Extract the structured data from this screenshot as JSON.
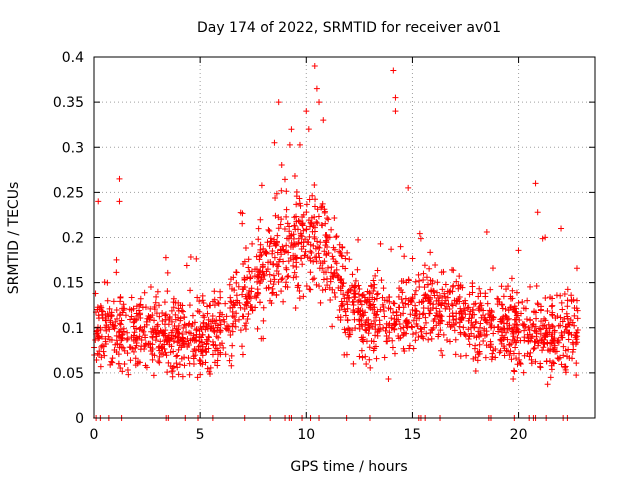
{
  "chart_data": {
    "type": "scatter",
    "title": "Day 174 of 2022, SRMTID for receiver av01",
    "xlabel": "GPS time / hours",
    "ylabel": "SRMTID / TECUs",
    "xlim": [
      0,
      23.6
    ],
    "ylim": [
      0,
      0.4
    ],
    "xticks": [
      0,
      5,
      10,
      15,
      20
    ],
    "xtick_labels": [
      "0",
      "5",
      "10",
      "15",
      "20"
    ],
    "yticks": [
      0,
      0.05,
      0.1,
      0.15,
      0.2,
      0.25,
      0.3,
      0.35,
      0.4
    ],
    "ytick_labels": [
      "0",
      "0.05",
      "0.1",
      "0.15",
      "0.2",
      "0.25",
      "0.3",
      "0.35",
      "0.4"
    ],
    "grid": true,
    "marker": "plus",
    "color": "#ff0000",
    "series": [
      {
        "name": "SRMTID",
        "envelope_hours": [
          0,
          1,
          2,
          3,
          4,
          5,
          6,
          7,
          8,
          9,
          10,
          11,
          12,
          13,
          14,
          15,
          16,
          17,
          18,
          19,
          20,
          21,
          22,
          22.8
        ],
        "envelope_median": [
          0.1,
          0.095,
          0.09,
          0.09,
          0.095,
          0.09,
          0.1,
          0.13,
          0.16,
          0.19,
          0.2,
          0.18,
          0.12,
          0.11,
          0.11,
          0.12,
          0.12,
          0.12,
          0.11,
          0.1,
          0.1,
          0.09,
          0.09,
          0.1
        ],
        "notable_points": [
          {
            "x": 0.2,
            "y": 0.24
          },
          {
            "x": 1.2,
            "y": 0.265
          },
          {
            "x": 1.2,
            "y": 0.24
          },
          {
            "x": 8.5,
            "y": 0.305
          },
          {
            "x": 8.7,
            "y": 0.35
          },
          {
            "x": 9.3,
            "y": 0.32
          },
          {
            "x": 10.0,
            "y": 0.34
          },
          {
            "x": 10.4,
            "y": 0.39
          },
          {
            "x": 10.5,
            "y": 0.365
          },
          {
            "x": 10.6,
            "y": 0.35
          },
          {
            "x": 10.8,
            "y": 0.33
          },
          {
            "x": 14.1,
            "y": 0.385
          },
          {
            "x": 14.2,
            "y": 0.355
          },
          {
            "x": 14.2,
            "y": 0.34
          },
          {
            "x": 14.8,
            "y": 0.255
          },
          {
            "x": 20.8,
            "y": 0.26
          },
          {
            "x": 20.9,
            "y": 0.228
          },
          {
            "x": 22.0,
            "y": 0.21
          }
        ],
        "zero_points_hours": [
          0.1,
          0.3,
          0.7,
          1.3,
          3.4,
          3.5,
          4.3,
          4.9,
          5.6,
          7.1,
          8.3,
          9.0,
          9.2,
          9.3,
          9.8,
          10.2,
          10.6,
          11.9,
          13.0,
          15.3,
          15.4,
          15.6,
          16.3,
          18.6,
          18.7,
          19.8,
          20.5,
          20.7,
          20.8,
          21.3,
          22.1,
          22.3
        ]
      }
    ]
  }
}
